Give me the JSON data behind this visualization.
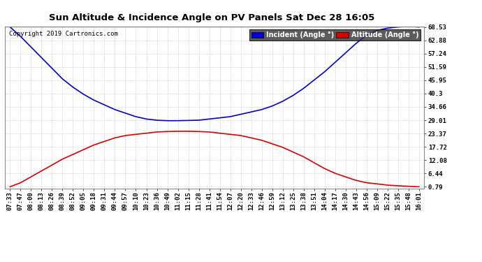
{
  "title": "Sun Altitude & Incidence Angle on PV Panels Sat Dec 28 16:05",
  "copyright": "Copyright 2019 Cartronics.com",
  "yticks": [
    0.79,
    6.44,
    12.08,
    17.72,
    23.37,
    29.01,
    34.66,
    40.3,
    45.95,
    51.59,
    57.24,
    62.88,
    68.53
  ],
  "ymin": 0.0,
  "ymax": 68.53,
  "incident_color": "#0000dd",
  "altitude_color": "#dd0000",
  "background_color": "#ffffff",
  "grid_color": "#bbbbbb",
  "legend_altitude_label": "Altitude (Angle °)",
  "legend_incident_bg": "#0000dd",
  "legend_altitude_bg": "#dd0000",
  "xtick_labels": [
    "07:33",
    "07:47",
    "08:00",
    "08:13",
    "08:26",
    "08:39",
    "08:52",
    "09:05",
    "09:18",
    "09:31",
    "09:44",
    "09:57",
    "10:10",
    "10:23",
    "10:36",
    "10:49",
    "11:02",
    "11:15",
    "11:28",
    "11:41",
    "11:54",
    "12:07",
    "12:20",
    "12:33",
    "12:46",
    "12:59",
    "13:12",
    "13:25",
    "13:38",
    "13:51",
    "14:04",
    "14:17",
    "14:30",
    "14:43",
    "14:56",
    "15:09",
    "15:22",
    "15:35",
    "15:48",
    "16:01"
  ],
  "incident_values": [
    68.5,
    64.5,
    60.0,
    55.5,
    51.0,
    46.5,
    43.0,
    40.0,
    37.5,
    35.5,
    33.5,
    32.0,
    30.5,
    29.5,
    29.0,
    28.8,
    28.8,
    28.9,
    29.0,
    29.5,
    30.0,
    30.5,
    31.5,
    32.5,
    33.5,
    35.0,
    37.0,
    39.5,
    42.5,
    46.0,
    49.5,
    53.5,
    57.5,
    61.5,
    65.0,
    67.0,
    68.0,
    68.5,
    68.8,
    68.5
  ],
  "altitude_values": [
    0.8,
    2.5,
    5.0,
    7.5,
    10.0,
    12.5,
    14.5,
    16.5,
    18.5,
    20.0,
    21.5,
    22.5,
    23.0,
    23.5,
    24.0,
    24.2,
    24.3,
    24.3,
    24.2,
    24.0,
    23.5,
    23.0,
    22.5,
    21.5,
    20.5,
    19.0,
    17.5,
    15.5,
    13.5,
    11.0,
    8.5,
    6.5,
    5.0,
    3.5,
    2.5,
    2.0,
    1.5,
    1.2,
    1.0,
    0.79
  ],
  "title_fontsize": 9.5,
  "tick_fontsize": 6.5,
  "copyright_fontsize": 6.5,
  "legend_fontsize": 7.0,
  "linewidth": 1.2
}
